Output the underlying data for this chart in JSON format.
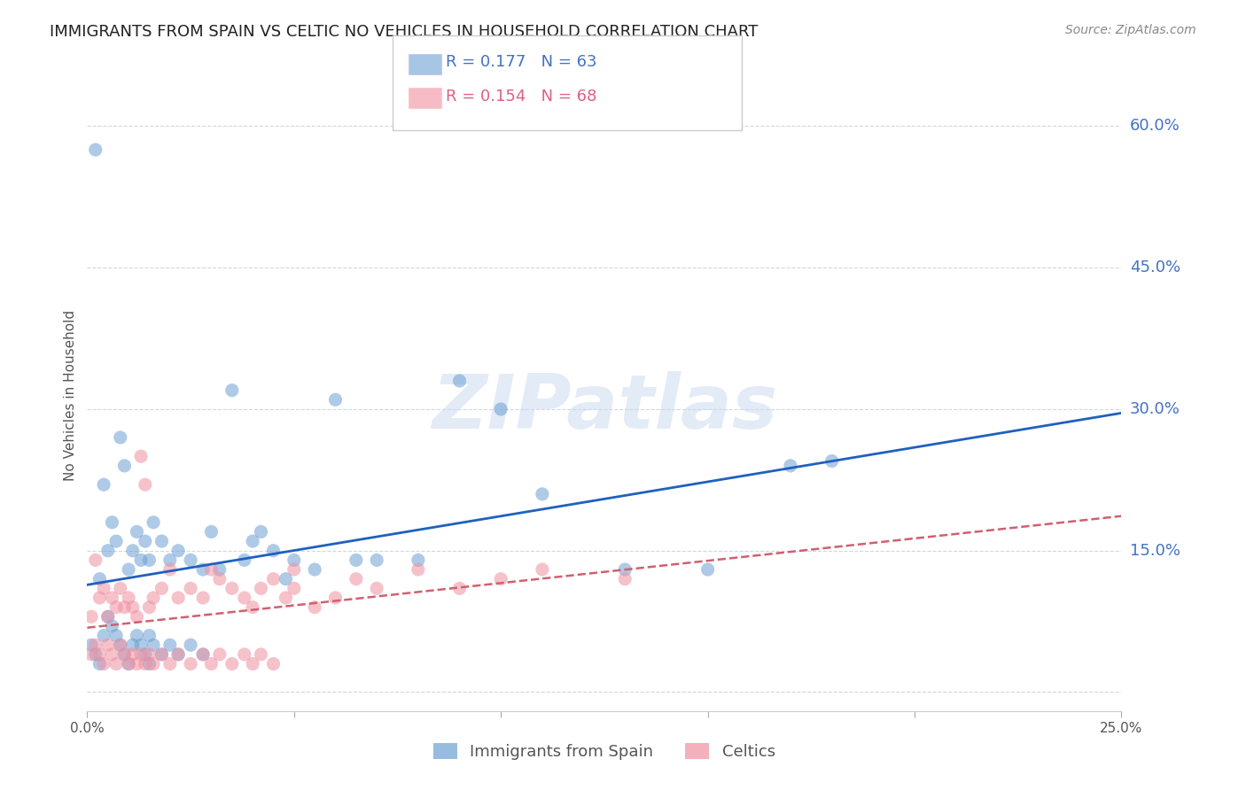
{
  "title": "IMMIGRANTS FROM SPAIN VS CELTIC NO VEHICLES IN HOUSEHOLD CORRELATION CHART",
  "source_text": "Source: ZipAtlas.com",
  "ylabel": "No Vehicles in Household",
  "xlim": [
    0.0,
    0.25
  ],
  "ylim": [
    -0.02,
    0.65
  ],
  "yticks": [
    0.0,
    0.15,
    0.3,
    0.45,
    0.6
  ],
  "xticks": [
    0.0,
    0.05,
    0.1,
    0.15,
    0.2,
    0.25
  ],
  "xtick_labels": [
    "0.0%",
    "",
    "",
    "",
    "",
    "25.0%"
  ],
  "right_labels": {
    "0.60": "60.0%",
    "0.45": "45.0%",
    "0.30": "30.0%",
    "0.15": "15.0%"
  },
  "series1_name": "Immigrants from Spain",
  "series1_color": "#6ca0d4",
  "series1_R": 0.177,
  "series1_N": 63,
  "series2_name": "Celtics",
  "series2_color": "#f090a0",
  "series2_R": 0.154,
  "series2_N": 68,
  "trend1_color": "#2060c0",
  "trend2_color": "#d06070",
  "watermark": "ZIPatlas",
  "watermark_color": "#c8d8f0",
  "grid_color": "#d0d8e0",
  "bg_color": "#ffffff",
  "series1_x": [
    0.002,
    0.003,
    0.004,
    0.005,
    0.006,
    0.007,
    0.008,
    0.009,
    0.01,
    0.011,
    0.012,
    0.013,
    0.014,
    0.015,
    0.016,
    0.018,
    0.02,
    0.022,
    0.025,
    0.028,
    0.03,
    0.032,
    0.035,
    0.038,
    0.04,
    0.042,
    0.045,
    0.048,
    0.05,
    0.055,
    0.06,
    0.065,
    0.07,
    0.08,
    0.09,
    0.1,
    0.11,
    0.13,
    0.15,
    0.17,
    0.001,
    0.002,
    0.003,
    0.004,
    0.005,
    0.006,
    0.007,
    0.008,
    0.009,
    0.01,
    0.011,
    0.012,
    0.013,
    0.014,
    0.015,
    0.016,
    0.018,
    0.02,
    0.022,
    0.025,
    0.028,
    0.015,
    0.18
  ],
  "series1_y": [
    0.575,
    0.12,
    0.22,
    0.15,
    0.18,
    0.16,
    0.27,
    0.24,
    0.13,
    0.15,
    0.17,
    0.14,
    0.16,
    0.14,
    0.18,
    0.16,
    0.14,
    0.15,
    0.14,
    0.13,
    0.17,
    0.13,
    0.32,
    0.14,
    0.16,
    0.17,
    0.15,
    0.12,
    0.14,
    0.13,
    0.31,
    0.14,
    0.14,
    0.14,
    0.33,
    0.3,
    0.21,
    0.13,
    0.13,
    0.24,
    0.05,
    0.04,
    0.03,
    0.06,
    0.08,
    0.07,
    0.06,
    0.05,
    0.04,
    0.03,
    0.05,
    0.06,
    0.05,
    0.04,
    0.06,
    0.05,
    0.04,
    0.05,
    0.04,
    0.05,
    0.04,
    0.03,
    0.245
  ],
  "series2_x": [
    0.001,
    0.002,
    0.003,
    0.004,
    0.005,
    0.006,
    0.007,
    0.008,
    0.009,
    0.01,
    0.011,
    0.012,
    0.013,
    0.014,
    0.015,
    0.016,
    0.018,
    0.02,
    0.022,
    0.025,
    0.028,
    0.03,
    0.032,
    0.035,
    0.038,
    0.04,
    0.042,
    0.045,
    0.048,
    0.05,
    0.055,
    0.06,
    0.065,
    0.07,
    0.08,
    0.09,
    0.1,
    0.11,
    0.13,
    0.001,
    0.002,
    0.003,
    0.004,
    0.005,
    0.006,
    0.007,
    0.008,
    0.009,
    0.01,
    0.011,
    0.012,
    0.013,
    0.014,
    0.015,
    0.016,
    0.018,
    0.02,
    0.022,
    0.025,
    0.028,
    0.03,
    0.032,
    0.035,
    0.038,
    0.04,
    0.042,
    0.045,
    0.05
  ],
  "series2_y": [
    0.08,
    0.14,
    0.1,
    0.11,
    0.08,
    0.1,
    0.09,
    0.11,
    0.09,
    0.1,
    0.09,
    0.08,
    0.25,
    0.22,
    0.09,
    0.1,
    0.11,
    0.13,
    0.1,
    0.11,
    0.1,
    0.13,
    0.12,
    0.11,
    0.1,
    0.09,
    0.11,
    0.12,
    0.1,
    0.11,
    0.09,
    0.1,
    0.12,
    0.11,
    0.13,
    0.11,
    0.12,
    0.13,
    0.12,
    0.04,
    0.05,
    0.04,
    0.03,
    0.05,
    0.04,
    0.03,
    0.05,
    0.04,
    0.03,
    0.04,
    0.03,
    0.04,
    0.03,
    0.04,
    0.03,
    0.04,
    0.03,
    0.04,
    0.03,
    0.04,
    0.03,
    0.04,
    0.03,
    0.04,
    0.03,
    0.04,
    0.03,
    0.13
  ]
}
